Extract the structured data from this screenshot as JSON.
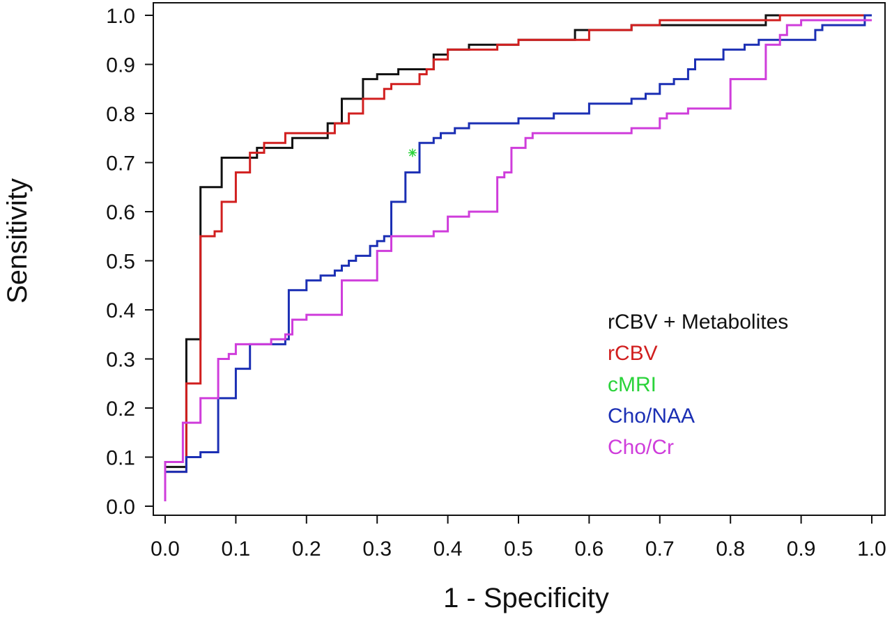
{
  "chart_data": {
    "type": "line",
    "title": "",
    "xlabel": "1 - Specificity",
    "ylabel": "Sensitivity",
    "xlim": [
      0,
      1
    ],
    "ylim": [
      0,
      1
    ],
    "grid": false,
    "legend_position": "lower-right",
    "x_ticks": [
      "0.0",
      "0.1",
      "0.2",
      "0.3",
      "0.4",
      "0.5",
      "0.6",
      "0.7",
      "0.8",
      "0.9",
      "1.0"
    ],
    "y_ticks": [
      "0.0",
      "0.1",
      "0.2",
      "0.3",
      "0.4",
      "0.5",
      "0.6",
      "0.7",
      "0.8",
      "0.9",
      "1.0"
    ],
    "series": [
      {
        "name": "rCBV + Metabolites",
        "color": "#111111",
        "shape": "step",
        "points": [
          [
            0,
            0.07
          ],
          [
            0,
            0.08
          ],
          [
            0.03,
            0.08
          ],
          [
            0.03,
            0.34
          ],
          [
            0.05,
            0.34
          ],
          [
            0.05,
            0.65
          ],
          [
            0.08,
            0.65
          ],
          [
            0.08,
            0.71
          ],
          [
            0.13,
            0.71
          ],
          [
            0.13,
            0.73
          ],
          [
            0.18,
            0.73
          ],
          [
            0.18,
            0.75
          ],
          [
            0.23,
            0.75
          ],
          [
            0.23,
            0.78
          ],
          [
            0.25,
            0.78
          ],
          [
            0.25,
            0.83
          ],
          [
            0.28,
            0.83
          ],
          [
            0.28,
            0.87
          ],
          [
            0.3,
            0.87
          ],
          [
            0.3,
            0.88
          ],
          [
            0.33,
            0.88
          ],
          [
            0.33,
            0.89
          ],
          [
            0.38,
            0.89
          ],
          [
            0.38,
            0.92
          ],
          [
            0.4,
            0.92
          ],
          [
            0.4,
            0.93
          ],
          [
            0.43,
            0.93
          ],
          [
            0.43,
            0.94
          ],
          [
            0.5,
            0.94
          ],
          [
            0.5,
            0.95
          ],
          [
            0.58,
            0.95
          ],
          [
            0.58,
            0.97
          ],
          [
            0.66,
            0.97
          ],
          [
            0.66,
            0.98
          ],
          [
            0.85,
            0.98
          ],
          [
            0.85,
            1.0
          ],
          [
            1.0,
            1.0
          ]
        ]
      },
      {
        "name": "rCBV",
        "color": "#d11f1f",
        "shape": "step",
        "points": [
          [
            0,
            0.07
          ],
          [
            0.03,
            0.07
          ],
          [
            0.03,
            0.25
          ],
          [
            0.05,
            0.25
          ],
          [
            0.05,
            0.55
          ],
          [
            0.07,
            0.55
          ],
          [
            0.07,
            0.56
          ],
          [
            0.08,
            0.56
          ],
          [
            0.08,
            0.62
          ],
          [
            0.1,
            0.62
          ],
          [
            0.1,
            0.68
          ],
          [
            0.12,
            0.68
          ],
          [
            0.12,
            0.72
          ],
          [
            0.14,
            0.72
          ],
          [
            0.14,
            0.74
          ],
          [
            0.17,
            0.74
          ],
          [
            0.17,
            0.76
          ],
          [
            0.24,
            0.76
          ],
          [
            0.24,
            0.78
          ],
          [
            0.26,
            0.78
          ],
          [
            0.26,
            0.8
          ],
          [
            0.28,
            0.8
          ],
          [
            0.28,
            0.83
          ],
          [
            0.31,
            0.83
          ],
          [
            0.31,
            0.85
          ],
          [
            0.32,
            0.85
          ],
          [
            0.32,
            0.86
          ],
          [
            0.36,
            0.86
          ],
          [
            0.36,
            0.88
          ],
          [
            0.37,
            0.88
          ],
          [
            0.37,
            0.89
          ],
          [
            0.38,
            0.89
          ],
          [
            0.38,
            0.91
          ],
          [
            0.4,
            0.91
          ],
          [
            0.4,
            0.93
          ],
          [
            0.47,
            0.93
          ],
          [
            0.47,
            0.94
          ],
          [
            0.5,
            0.94
          ],
          [
            0.5,
            0.95
          ],
          [
            0.6,
            0.95
          ],
          [
            0.6,
            0.97
          ],
          [
            0.66,
            0.97
          ],
          [
            0.66,
            0.98
          ],
          [
            0.7,
            0.98
          ],
          [
            0.7,
            0.99
          ],
          [
            0.87,
            0.99
          ],
          [
            0.87,
            1.0
          ],
          [
            1.0,
            1.0
          ]
        ]
      },
      {
        "name": "cMRI",
        "color": "#2ad33a",
        "shape": "point",
        "points": [
          [
            0.35,
            0.72
          ]
        ]
      },
      {
        "name": "Cho/NAA",
        "color": "#1b2fb4",
        "shape": "step",
        "points": [
          [
            0,
            0.07
          ],
          [
            0.03,
            0.07
          ],
          [
            0.03,
            0.1
          ],
          [
            0.05,
            0.1
          ],
          [
            0.05,
            0.11
          ],
          [
            0.075,
            0.11
          ],
          [
            0.075,
            0.22
          ],
          [
            0.1,
            0.22
          ],
          [
            0.1,
            0.28
          ],
          [
            0.12,
            0.28
          ],
          [
            0.12,
            0.33
          ],
          [
            0.17,
            0.33
          ],
          [
            0.17,
            0.34
          ],
          [
            0.175,
            0.34
          ],
          [
            0.175,
            0.44
          ],
          [
            0.2,
            0.44
          ],
          [
            0.2,
            0.46
          ],
          [
            0.22,
            0.46
          ],
          [
            0.22,
            0.47
          ],
          [
            0.24,
            0.47
          ],
          [
            0.24,
            0.48
          ],
          [
            0.25,
            0.48
          ],
          [
            0.25,
            0.49
          ],
          [
            0.26,
            0.49
          ],
          [
            0.26,
            0.5
          ],
          [
            0.27,
            0.5
          ],
          [
            0.27,
            0.51
          ],
          [
            0.29,
            0.51
          ],
          [
            0.29,
            0.53
          ],
          [
            0.3,
            0.53
          ],
          [
            0.3,
            0.54
          ],
          [
            0.31,
            0.54
          ],
          [
            0.31,
            0.55
          ],
          [
            0.32,
            0.55
          ],
          [
            0.32,
            0.62
          ],
          [
            0.34,
            0.62
          ],
          [
            0.34,
            0.68
          ],
          [
            0.36,
            0.68
          ],
          [
            0.36,
            0.74
          ],
          [
            0.38,
            0.74
          ],
          [
            0.38,
            0.75
          ],
          [
            0.39,
            0.75
          ],
          [
            0.39,
            0.76
          ],
          [
            0.41,
            0.76
          ],
          [
            0.41,
            0.77
          ],
          [
            0.43,
            0.77
          ],
          [
            0.43,
            0.78
          ],
          [
            0.5,
            0.78
          ],
          [
            0.5,
            0.79
          ],
          [
            0.55,
            0.79
          ],
          [
            0.55,
            0.8
          ],
          [
            0.6,
            0.8
          ],
          [
            0.6,
            0.82
          ],
          [
            0.66,
            0.82
          ],
          [
            0.66,
            0.83
          ],
          [
            0.68,
            0.83
          ],
          [
            0.68,
            0.84
          ],
          [
            0.7,
            0.84
          ],
          [
            0.7,
            0.86
          ],
          [
            0.72,
            0.86
          ],
          [
            0.72,
            0.87
          ],
          [
            0.74,
            0.87
          ],
          [
            0.74,
            0.89
          ],
          [
            0.75,
            0.89
          ],
          [
            0.75,
            0.91
          ],
          [
            0.79,
            0.91
          ],
          [
            0.79,
            0.93
          ],
          [
            0.82,
            0.93
          ],
          [
            0.82,
            0.94
          ],
          [
            0.84,
            0.94
          ],
          [
            0.84,
            0.95
          ],
          [
            0.92,
            0.95
          ],
          [
            0.92,
            0.97
          ],
          [
            0.93,
            0.97
          ],
          [
            0.93,
            0.98
          ],
          [
            0.99,
            0.98
          ],
          [
            0.99,
            1.0
          ],
          [
            1.0,
            1.0
          ]
        ]
      },
      {
        "name": "Cho/Cr",
        "color": "#cf3ddb",
        "shape": "step",
        "points": [
          [
            0,
            0.01
          ],
          [
            0,
            0.09
          ],
          [
            0.025,
            0.09
          ],
          [
            0.025,
            0.17
          ],
          [
            0.05,
            0.17
          ],
          [
            0.05,
            0.22
          ],
          [
            0.075,
            0.22
          ],
          [
            0.075,
            0.3
          ],
          [
            0.09,
            0.3
          ],
          [
            0.09,
            0.31
          ],
          [
            0.1,
            0.31
          ],
          [
            0.1,
            0.33
          ],
          [
            0.15,
            0.33
          ],
          [
            0.15,
            0.34
          ],
          [
            0.17,
            0.34
          ],
          [
            0.17,
            0.35
          ],
          [
            0.18,
            0.35
          ],
          [
            0.18,
            0.38
          ],
          [
            0.2,
            0.38
          ],
          [
            0.2,
            0.39
          ],
          [
            0.25,
            0.39
          ],
          [
            0.25,
            0.46
          ],
          [
            0.3,
            0.46
          ],
          [
            0.3,
            0.52
          ],
          [
            0.32,
            0.52
          ],
          [
            0.32,
            0.55
          ],
          [
            0.38,
            0.55
          ],
          [
            0.38,
            0.56
          ],
          [
            0.4,
            0.56
          ],
          [
            0.4,
            0.59
          ],
          [
            0.43,
            0.59
          ],
          [
            0.43,
            0.6
          ],
          [
            0.47,
            0.6
          ],
          [
            0.47,
            0.67
          ],
          [
            0.48,
            0.67
          ],
          [
            0.48,
            0.68
          ],
          [
            0.49,
            0.68
          ],
          [
            0.49,
            0.73
          ],
          [
            0.51,
            0.73
          ],
          [
            0.51,
            0.75
          ],
          [
            0.52,
            0.75
          ],
          [
            0.52,
            0.76
          ],
          [
            0.66,
            0.76
          ],
          [
            0.66,
            0.77
          ],
          [
            0.7,
            0.77
          ],
          [
            0.7,
            0.79
          ],
          [
            0.71,
            0.79
          ],
          [
            0.71,
            0.8
          ],
          [
            0.74,
            0.8
          ],
          [
            0.74,
            0.81
          ],
          [
            0.8,
            0.81
          ],
          [
            0.8,
            0.87
          ],
          [
            0.85,
            0.87
          ],
          [
            0.85,
            0.94
          ],
          [
            0.87,
            0.94
          ],
          [
            0.87,
            0.96
          ],
          [
            0.88,
            0.96
          ],
          [
            0.88,
            0.98
          ],
          [
            0.9,
            0.98
          ],
          [
            0.9,
            0.99
          ],
          [
            1.0,
            0.99
          ]
        ]
      }
    ]
  }
}
